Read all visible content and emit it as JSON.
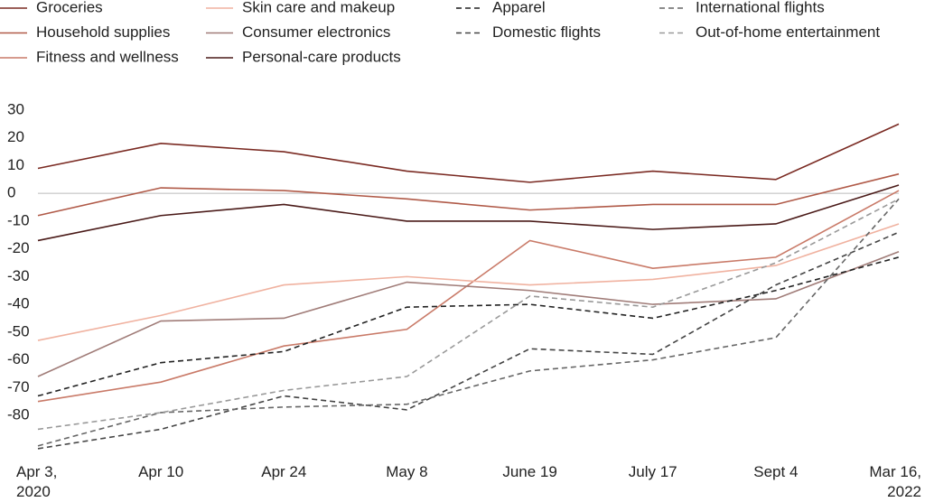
{
  "chart_data": {
    "type": "line",
    "categories": [
      "Apr 3, 2020",
      "Apr 10",
      "Apr 24",
      "May 8",
      "June 19",
      "July 17",
      "Sept 4",
      "Mar 16, 2022"
    ],
    "ylim": [
      -93,
      31
    ],
    "yticks": [
      30,
      20,
      10,
      0,
      -10,
      -20,
      -30,
      -40,
      -50,
      -60,
      -70,
      -80
    ],
    "zero_line": true,
    "series": [
      {
        "name": "Groceries",
        "color": "#7a2a22",
        "dashed": false,
        "values": [
          9,
          18,
          15,
          8,
          4,
          8,
          5,
          25
        ]
      },
      {
        "name": "Household supplies",
        "color": "#b05a48",
        "dashed": false,
        "values": [
          -8,
          2,
          1,
          -2,
          -6,
          -4,
          -4,
          7
        ]
      },
      {
        "name": "Fitness and wellness",
        "color": "#c97a68",
        "dashed": false,
        "values": [
          -75,
          -68,
          -55,
          -49,
          -17,
          -27,
          -23,
          1
        ]
      },
      {
        "name": "Skin care and makeup",
        "color": "#f0b2a0",
        "dashed": false,
        "values": [
          -53,
          -44,
          -33,
          -30,
          -33,
          -31,
          -26,
          -11
        ]
      },
      {
        "name": "Consumer electronics",
        "color": "#a07c78",
        "dashed": false,
        "values": [
          -66,
          -46,
          -45,
          -32,
          -35,
          -40,
          -38,
          -21
        ]
      },
      {
        "name": "Personal-care products",
        "color": "#4a1a18",
        "dashed": false,
        "values": [
          -17,
          -8,
          -4,
          -10,
          -10,
          -13,
          -11,
          3
        ]
      },
      {
        "name": "Apparel",
        "color": "#222222",
        "dashed": true,
        "values": [
          -73,
          -61,
          -57,
          -41,
          -40,
          -45,
          -35,
          -23
        ]
      },
      {
        "name": "Domestic flights",
        "color": "#444444",
        "dashed": true,
        "values": [
          -92,
          -85,
          -73,
          -78,
          -56,
          -58,
          -33,
          -14
        ]
      },
      {
        "name": "International flights",
        "color": "#666666",
        "dashed": true,
        "values": [
          -91,
          -79,
          -77,
          -76,
          -64,
          -60,
          -52,
          -2
        ]
      },
      {
        "name": "Out-of-home entertainment",
        "color": "#999999",
        "dashed": true,
        "values": [
          -85,
          -79,
          -71,
          -66,
          -37,
          -41,
          -25,
          -2
        ]
      }
    ]
  }
}
